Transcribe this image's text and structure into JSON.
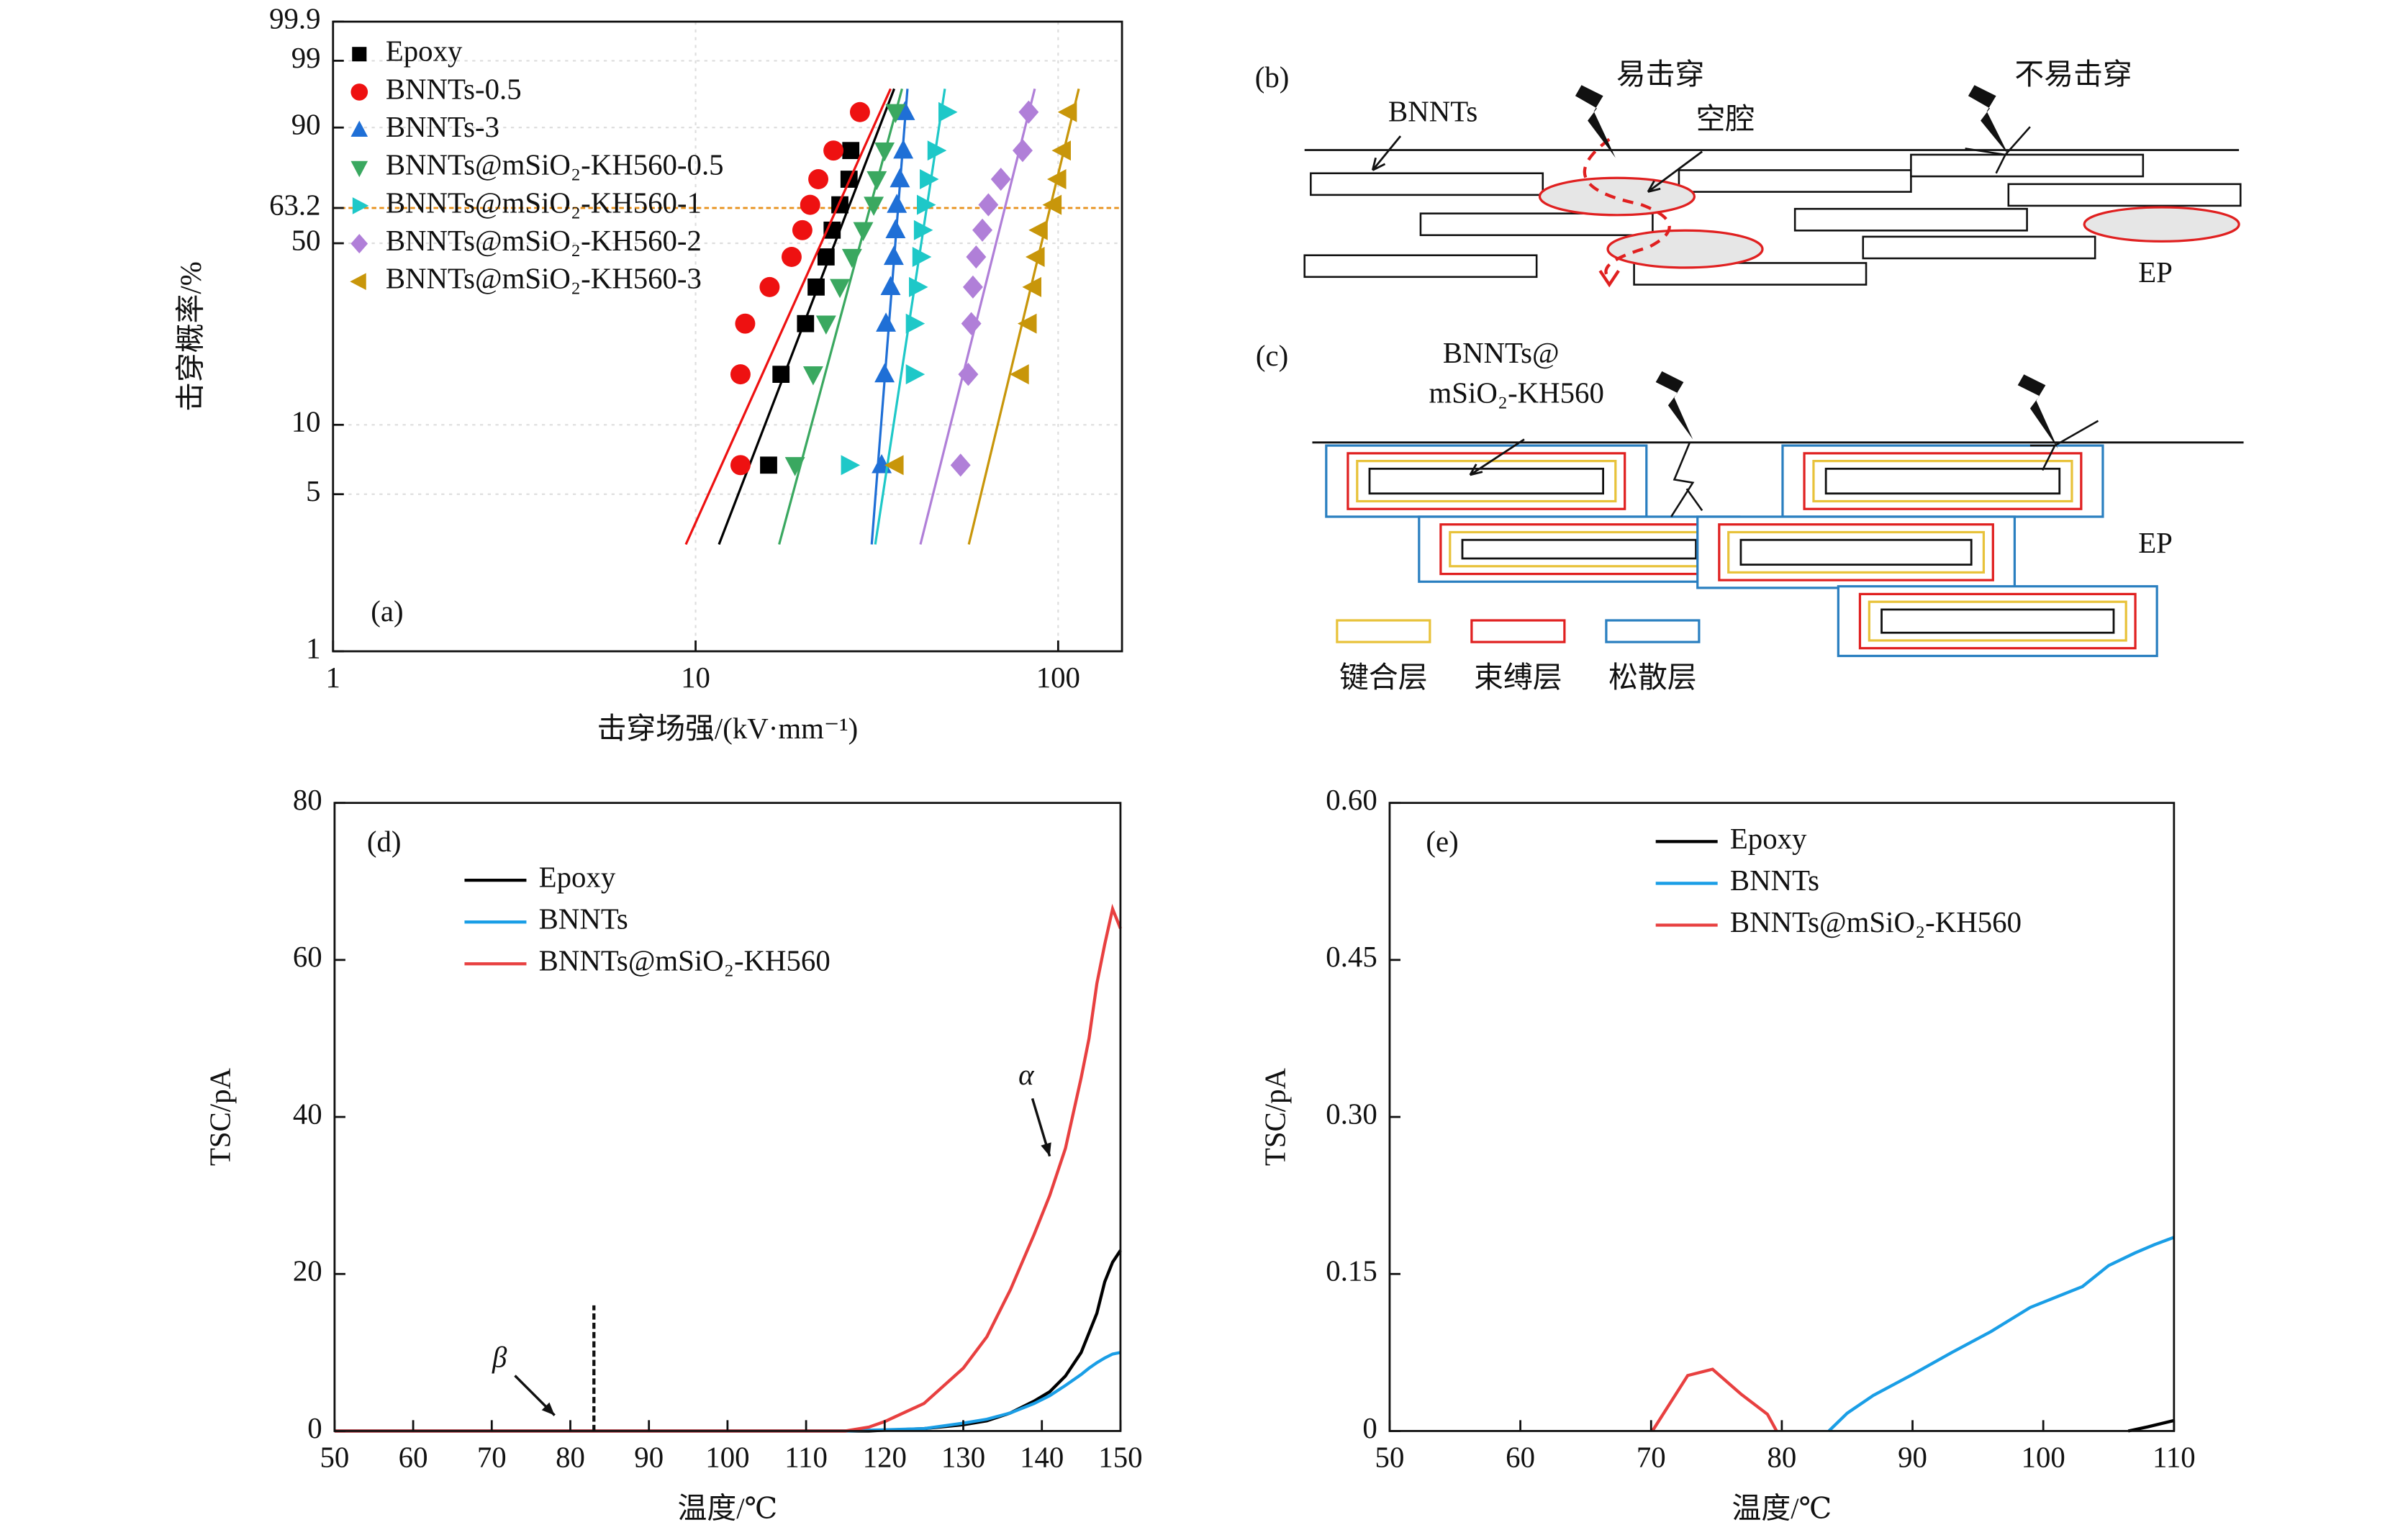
{
  "chart_data": [
    {
      "type": "scatter",
      "panel_label": "(a)",
      "xlabel": "击穿场强/(kV·mm⁻¹)",
      "ylabel": "击穿概率/%",
      "xscale": "log",
      "yscale": "weibull",
      "xlim": [
        1,
        150
      ],
      "ylim": [
        1,
        99.9
      ],
      "xticks": [
        1,
        10,
        100
      ],
      "yticks": [
        1,
        5,
        10,
        50,
        63.2,
        90,
        99,
        99.9
      ],
      "grid": true,
      "ref_line": 63.2,
      "legend": "upper left",
      "series": [
        {
          "name": "Epoxy",
          "color": "#000000",
          "marker": "square",
          "x": [
            15.9,
            17.2,
            20.1,
            21.5,
            22.9,
            23.8,
            25.0,
            26.5,
            26.8
          ],
          "y": [
            6.7,
            16.3,
            26.0,
            35.6,
            45.2,
            54.8,
            64.4,
            74.0,
            83.7
          ],
          "fit": {
            "x": [
              11.6,
              35.3
            ],
            "y": [
              3.0,
              96.8
            ]
          }
        },
        {
          "name": "BNNTs-0.5",
          "color": "#ee1111",
          "marker": "circle",
          "x": [
            13.3,
            13.3,
            13.7,
            16.0,
            18.4,
            19.7,
            20.7,
            21.8,
            24.0,
            28.4
          ],
          "y": [
            6.7,
            16.3,
            26.0,
            35.6,
            45.2,
            54.8,
            64.4,
            74.0,
            83.7,
            93.3
          ],
          "fit": {
            "x": [
              9.4,
              34.5
            ],
            "y": [
              3.0,
              96.8
            ]
          }
        },
        {
          "name": "BNNTs-3",
          "color": "#1f6fd6",
          "marker": "triangle-up",
          "x": [
            32.6,
            33.2,
            33.5,
            34.5,
            35.2,
            35.6,
            35.9,
            36.6,
            37.4,
            37.8
          ],
          "y": [
            6.7,
            16.3,
            26.0,
            35.6,
            45.2,
            54.8,
            64.4,
            74.0,
            83.7,
            93.3
          ],
          "fit": {
            "x": [
              30.6,
              38.4
            ],
            "y": [
              3.0,
              96.8
            ]
          }
        },
        {
          "name": "BNNTs@mSiO₂-KH560-0.5",
          "color": "#3aa860",
          "marker": "triangle-down",
          "x": [
            18.8,
            21.1,
            22.9,
            25.0,
            27.0,
            29.0,
            31.0,
            31.6,
            33.2,
            35.6
          ],
          "y": [
            6.7,
            16.3,
            26.0,
            35.6,
            45.2,
            54.8,
            64.4,
            74.0,
            83.7,
            93.3
          ],
          "fit": {
            "x": [
              17.0,
              37.1
            ],
            "y": [
              3.0,
              96.8
            ]
          }
        },
        {
          "name": "BNNTs@mSiO₂-KH560-1",
          "color": "#1ec8c8",
          "marker": "triangle-right",
          "x": [
            26.5,
            40.0,
            40.0,
            40.8,
            41.7,
            42.1,
            42.9,
            43.7,
            45.9,
            49.2
          ],
          "y": [
            6.7,
            16.3,
            26.0,
            35.6,
            45.2,
            54.8,
            64.4,
            74.0,
            83.7,
            93.3
          ],
          "fit": {
            "x": [
              31.3,
              48.7
            ],
            "y": [
              3.0,
              96.8
            ]
          }
        },
        {
          "name": "BNNTs@mSiO₂-KH560-2",
          "color": "#b07fd8",
          "marker": "diamond",
          "x": [
            53.8,
            56.5,
            57.6,
            58.2,
            59.4,
            61.8,
            64.2,
            69.5,
            79.8,
            82.9
          ],
          "y": [
            6.7,
            16.3,
            26.0,
            35.6,
            45.2,
            54.8,
            64.4,
            74.0,
            83.7,
            93.3
          ],
          "fit": {
            "x": [
              41.7,
              86.2
            ],
            "y": [
              3.0,
              96.8
            ]
          }
        },
        {
          "name": "BNNTs@mSiO₂-KH560-3",
          "color": "#c8960a",
          "marker": "triangle-left",
          "x": [
            35.6,
            78.9,
            82.9,
            85.4,
            87.2,
            88.9,
            97.1,
            100,
            103,
            107
          ],
          "y": [
            6.7,
            16.3,
            26.0,
            35.6,
            45.2,
            54.8,
            64.4,
            74.0,
            83.7,
            93.3
          ],
          "fit": {
            "x": [
              56.7,
              114
            ],
            "y": [
              3.0,
              96.8
            ]
          }
        }
      ]
    },
    {
      "type": "line",
      "panel_label": "(d)",
      "xlabel": "温度/℃",
      "ylabel": "TSC/pA",
      "xlim": [
        50,
        150
      ],
      "ylim": [
        0,
        80
      ],
      "xticks": [
        50,
        60,
        70,
        80,
        90,
        100,
        110,
        120,
        130,
        140,
        150
      ],
      "yticks": [
        0,
        20,
        40,
        60,
        80
      ],
      "legend": "upper left",
      "x": [
        50,
        80,
        100,
        110,
        115,
        118,
        120,
        125,
        130,
        133,
        136,
        139,
        141,
        143,
        145,
        146,
        147,
        148,
        149,
        150
      ],
      "series": [
        {
          "name": "Epoxy",
          "color": "#000000",
          "values": [
            0,
            0,
            0,
            0,
            0,
            0,
            0.1,
            0.3,
            0.8,
            1.3,
            2.3,
            3.8,
            5,
            7,
            10,
            12.5,
            15,
            19,
            21.5,
            23
          ]
        },
        {
          "name": "BNNTs",
          "color": "#1a9ee6",
          "values": [
            0,
            0,
            0,
            0,
            0,
            0.1,
            0.15,
            0.3,
            1,
            1.5,
            2.3,
            3.5,
            4.5,
            5.8,
            7.2,
            8,
            8.7,
            9.3,
            9.8,
            10
          ]
        },
        {
          "name": "BNNTs@mSiO₂-KH560",
          "color": "#e84040",
          "values": [
            0,
            0,
            0,
            0,
            0,
            0.5,
            1.2,
            3.5,
            8,
            12,
            18,
            25,
            30,
            36,
            45,
            50,
            57,
            62,
            66.5,
            64
          ]
        }
      ],
      "dashed_line": {
        "x": 83,
        "y": [
          0,
          16
        ]
      },
      "annotations": [
        {
          "text": "α",
          "x": 138,
          "y": 45,
          "arrow_to": [
            141,
            35
          ]
        },
        {
          "text": "β",
          "x": 71,
          "y": 9,
          "arrow_to": [
            78,
            2
          ]
        }
      ]
    },
    {
      "type": "line",
      "panel_label": "(e)",
      "xlabel": "温度/℃",
      "ylabel": "TSC/pA",
      "xlim": [
        50,
        110
      ],
      "ylim": [
        0,
        0.6
      ],
      "xticks": [
        50,
        60,
        70,
        80,
        90,
        100,
        110
      ],
      "yticks": [
        0,
        0.15,
        {
          "value": 0.3,
          "label": "0.30"
        },
        0.45,
        {
          "value": 0.6,
          "label": "0.60"
        }
      ],
      "legend": "upper center",
      "series": [
        {
          "name": "Epoxy",
          "color": "#000000",
          "x": [
            106.5,
            108,
            110
          ],
          "values": [
            0,
            0.004,
            0.01
          ]
        },
        {
          "name": "BNNTs",
          "color": "#1a9ee6",
          "x": [
            83.6,
            85,
            87,
            90,
            93,
            96,
            99,
            101,
            103,
            105,
            107,
            108.5,
            110
          ],
          "values": [
            0,
            0.017,
            0.034,
            0.054,
            0.075,
            0.095,
            0.118,
            0.128,
            0.138,
            0.158,
            0.17,
            0.178,
            0.185
          ]
        },
        {
          "name": "BNNTs@mSiO₂-KH560",
          "color": "#e84040",
          "x": [
            70.1,
            72.8,
            74.7,
            76.9,
            78.9,
            79.6
          ],
          "values": [
            0,
            0.053,
            0.059,
            0.035,
            0.016,
            0
          ]
        }
      ]
    }
  ],
  "diagrams": {
    "b": {
      "label": "(b)",
      "filler": "BNNTs",
      "easy": "易击穿",
      "hard": "不易击穿",
      "cavity": "空腔",
      "matrix": "EP"
    },
    "c": {
      "label": "(c)",
      "filler_1": "BNNTs@",
      "filler_2": "mSiO₂-KH560",
      "matrix": "EP",
      "layers": [
        "键合层",
        "束缚层",
        "松散层"
      ]
    }
  }
}
